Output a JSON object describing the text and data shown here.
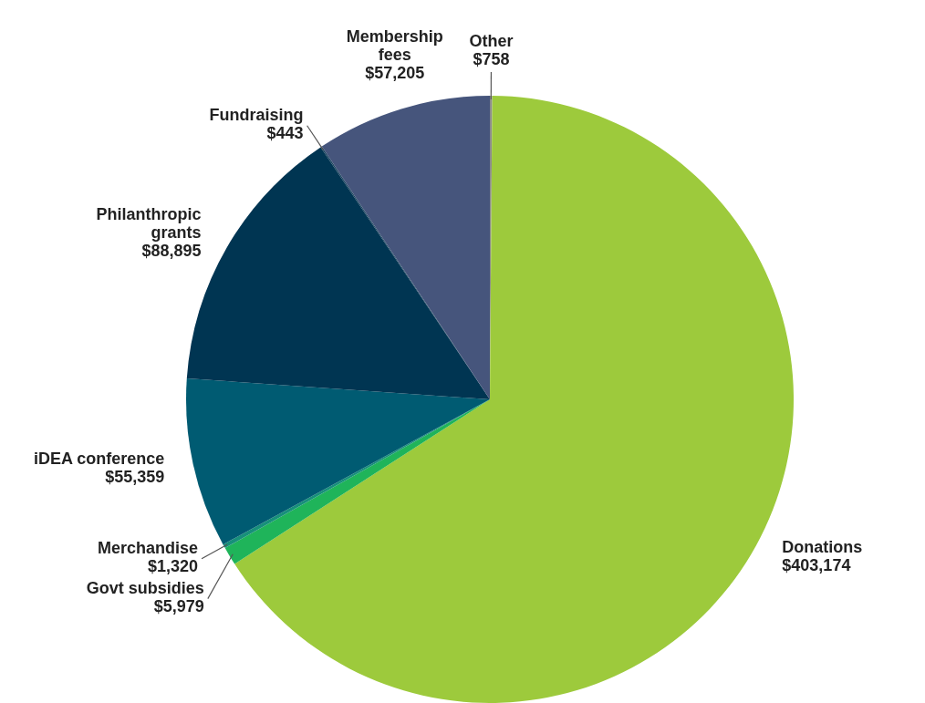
{
  "chart_data": {
    "type": "pie",
    "categories": [
      "Other",
      "Donations",
      "Govt subsidies",
      "Merchandise",
      "iDEA conference",
      "Philanthropic\ngrants",
      "Fundraising",
      "Membership\nfees"
    ],
    "values": [
      758,
      403174,
      5979,
      1320,
      55359,
      88895,
      443,
      57205
    ],
    "value_labels": [
      "$758",
      "$403,174",
      "$5,979",
      "$1,320",
      "$55,359",
      "$88,895",
      "$443",
      "$57,205"
    ],
    "colors": [
      "#8c8c8c",
      "#9dca3c",
      "#1fb45a",
      "#17907a",
      "#005b72",
      "#003552",
      "#1c4560",
      "#46557c"
    ],
    "legend": false
  }
}
